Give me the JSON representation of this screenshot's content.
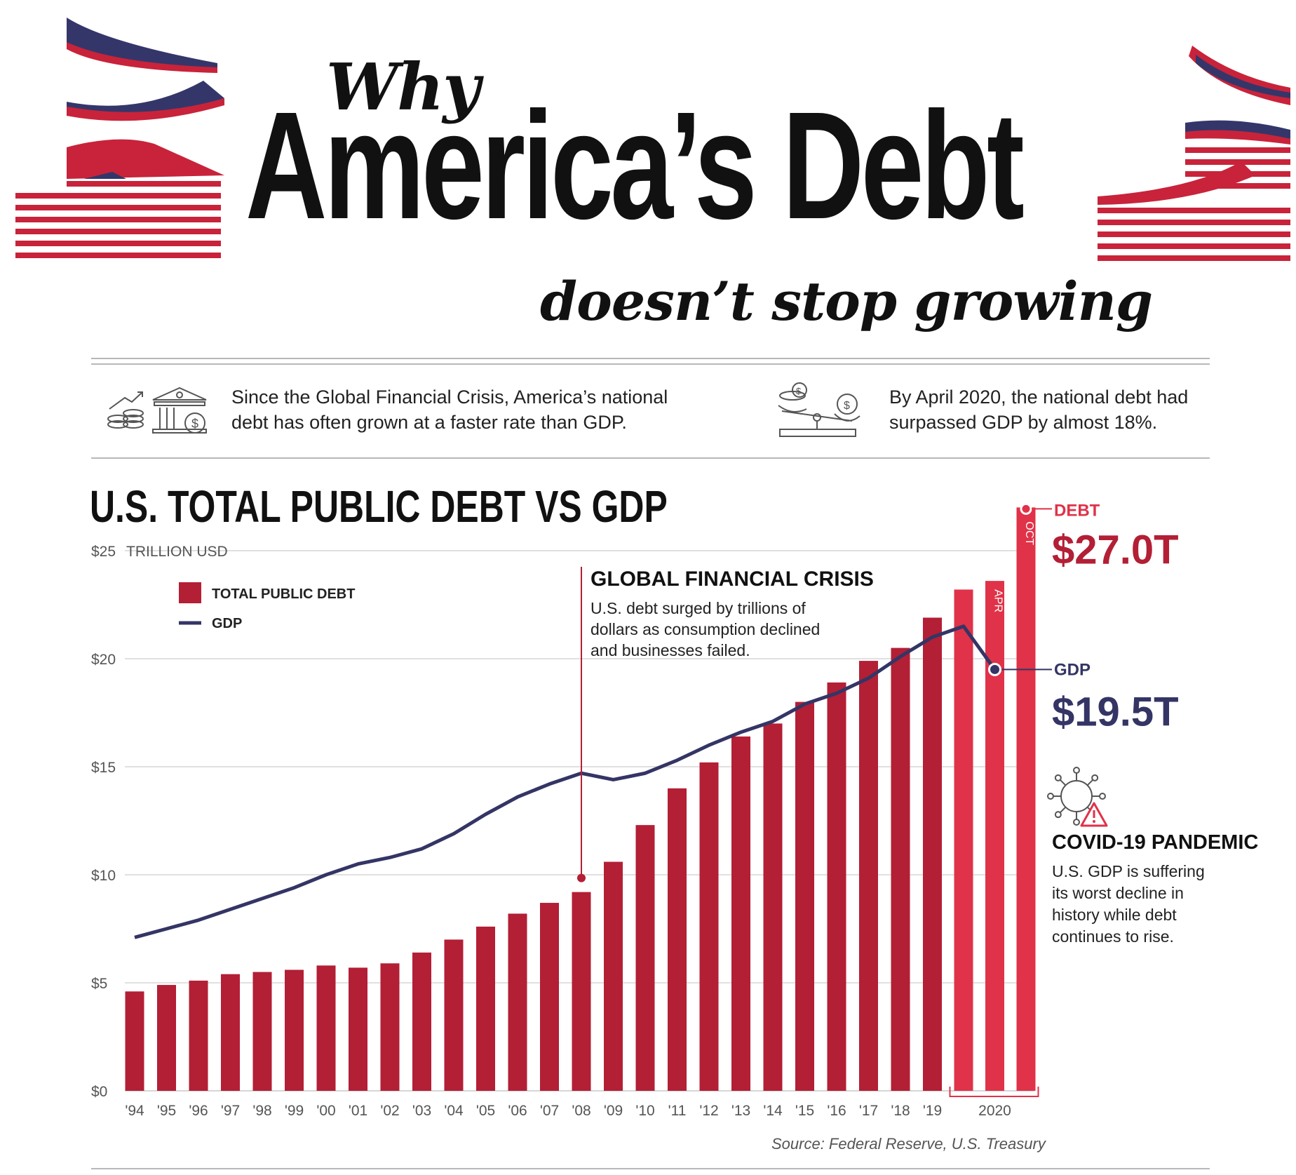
{
  "header": {
    "why": "Why",
    "title": "America’s Debt",
    "subtitle": "doesn’t stop growing"
  },
  "facts": [
    {
      "icon": "bank-growth-icon",
      "text_line1": "Since the Global Financial Crisis, America’s national",
      "text_line2": "debt has often grown at a faster rate than GDP."
    },
    {
      "icon": "scale-balance-icon",
      "text_line1": "By April 2020, the national debt had",
      "text_line2": "surpassed GDP by almost 18%."
    }
  ],
  "chart_data": {
    "type": "bar",
    "title": "U.S. TOTAL PUBLIC DEBT VS GDP",
    "ylabel": "TRILLION USD",
    "ylim": [
      0,
      25
    ],
    "yticks": [
      {
        "value": 0,
        "label": "$0"
      },
      {
        "value": 5,
        "label": "$5"
      },
      {
        "value": 10,
        "label": "$10"
      },
      {
        "value": 15,
        "label": "$15"
      },
      {
        "value": 20,
        "label": "$20"
      },
      {
        "value": 25,
        "label": "$25"
      }
    ],
    "grid": true,
    "legend_position": "top-left",
    "categories": [
      "'94",
      "'95",
      "'96",
      "'97",
      "'98",
      "'99",
      "'00",
      "'01",
      "'02",
      "'03",
      "'04",
      "'05",
      "'06",
      "'07",
      "'08",
      "'09",
      "'10",
      "'11",
      "'12",
      "'13",
      "'14",
      "'15",
      "'16",
      "'17",
      "'18",
      "'19",
      "2020 JAN",
      "APR",
      "OCT"
    ],
    "x_tick_labels": [
      "'94",
      "'95",
      "'96",
      "'97",
      "'98",
      "'99",
      "'00",
      "'01",
      "'02",
      "'03",
      "'04",
      "'05",
      "'06",
      "'07",
      "'08",
      "'09",
      "'10",
      "'11",
      "'12",
      "'13",
      "'14",
      "'15",
      "'16",
      "'17",
      "'18",
      "'19",
      "2020"
    ],
    "series": [
      {
        "name": "TOTAL PUBLIC DEBT",
        "kind": "bar",
        "color": "#b31f35",
        "values": [
          4.6,
          4.9,
          5.1,
          5.4,
          5.5,
          5.6,
          5.8,
          5.7,
          5.9,
          6.4,
          7.0,
          7.6,
          8.2,
          8.7,
          9.2,
          10.6,
          12.3,
          14.0,
          15.2,
          16.4,
          17.0,
          18.0,
          18.9,
          19.9,
          20.5,
          21.9,
          23.2,
          23.6,
          27.0
        ]
      },
      {
        "name": "GDP",
        "kind": "line",
        "color": "#343565",
        "values": [
          7.1,
          7.5,
          7.9,
          8.4,
          8.9,
          9.4,
          10.0,
          10.5,
          10.8,
          11.2,
          11.9,
          12.8,
          13.6,
          14.2,
          14.7,
          14.4,
          14.7,
          15.3,
          16.0,
          16.6,
          17.1,
          17.9,
          18.4,
          19.1,
          20.1,
          21.0,
          21.5,
          19.5,
          null
        ]
      }
    ],
    "bar_highlight_color": "#e03248",
    "annotations": {
      "gfc": {
        "title": "GLOBAL FINANCIAL CRISIS",
        "text": [
          "U.S. debt surged by trillions of",
          "dollars as consumption declined",
          "and businesses failed."
        ]
      },
      "debt_callout": {
        "label": "DEBT",
        "value": "$27.0T",
        "bar_label": "OCT"
      },
      "gdp_callout": {
        "label": "GDP",
        "value": "$19.5T",
        "bar_label": "APR"
      },
      "covid": {
        "title": "COVID-19 PANDEMIC",
        "text": [
          "U.S. GDP is suffering",
          "its worst decline in",
          "history while debt",
          "continues to rise."
        ]
      }
    },
    "source": "Source: Federal Reserve, U.S. Treasury"
  }
}
